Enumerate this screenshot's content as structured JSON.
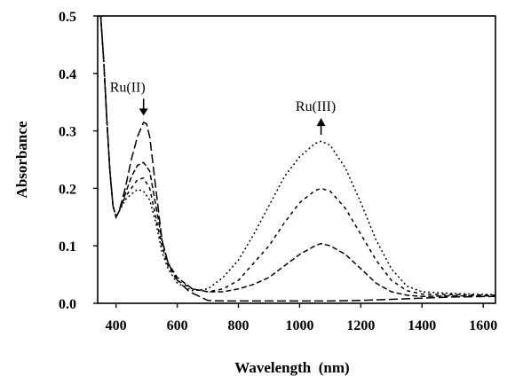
{
  "chart_data": {
    "type": "line",
    "xlabel": "Wavelength  (nm)",
    "ylabel": "Absorbance",
    "xlim": [
      340,
      1640
    ],
    "ylim": [
      0,
      0.5
    ],
    "x_ticks": [
      "400",
      "600",
      "800",
      "1000",
      "1200",
      "1400",
      "1600"
    ],
    "y_ticks": [
      "0.0",
      "0.1",
      "0.2",
      "0.3",
      "0.4",
      "0.5"
    ],
    "grid": false,
    "legend": "none",
    "annotations": [
      {
        "text": "Ru(II)",
        "x": 490,
        "y": 0.325,
        "arrow": "down"
      },
      {
        "text": "Ru(III)",
        "x": 1070,
        "y": 0.29,
        "arrow": "up"
      }
    ],
    "series": [
      {
        "dash": "10,4",
        "points": [
          [
            350,
            0.5
          ],
          [
            360,
            0.42
          ],
          [
            370,
            0.32
          ],
          [
            380,
            0.23
          ],
          [
            390,
            0.17
          ],
          [
            400,
            0.15
          ],
          [
            410,
            0.16
          ],
          [
            430,
            0.2
          ],
          [
            450,
            0.25
          ],
          [
            470,
            0.29
          ],
          [
            490,
            0.315
          ],
          [
            500,
            0.312
          ],
          [
            510,
            0.29
          ],
          [
            530,
            0.2
          ],
          [
            550,
            0.11
          ],
          [
            570,
            0.07
          ],
          [
            600,
            0.04
          ],
          [
            640,
            0.02
          ],
          [
            680,
            0.01
          ],
          [
            700,
            0.005
          ],
          [
            750,
            0.004
          ],
          [
            800,
            0.004
          ],
          [
            900,
            0.004
          ],
          [
            1000,
            0.004
          ],
          [
            1100,
            0.004
          ],
          [
            1200,
            0.005
          ],
          [
            1300,
            0.007
          ],
          [
            1400,
            0.009
          ],
          [
            1500,
            0.011
          ],
          [
            1640,
            0.012
          ]
        ]
      },
      {
        "dash": "6,3",
        "points": [
          [
            350,
            0.5
          ],
          [
            360,
            0.42
          ],
          [
            370,
            0.32
          ],
          [
            380,
            0.23
          ],
          [
            390,
            0.17
          ],
          [
            400,
            0.15
          ],
          [
            410,
            0.16
          ],
          [
            430,
            0.19
          ],
          [
            450,
            0.22
          ],
          [
            470,
            0.24
          ],
          [
            490,
            0.245
          ],
          [
            510,
            0.23
          ],
          [
            530,
            0.17
          ],
          [
            550,
            0.11
          ],
          [
            570,
            0.07
          ],
          [
            600,
            0.045
          ],
          [
            650,
            0.025
          ],
          [
            700,
            0.02
          ],
          [
            750,
            0.02
          ],
          [
            800,
            0.025
          ],
          [
            850,
            0.033
          ],
          [
            900,
            0.045
          ],
          [
            950,
            0.065
          ],
          [
            1000,
            0.085
          ],
          [
            1050,
            0.1
          ],
          [
            1070,
            0.104
          ],
          [
            1100,
            0.1
          ],
          [
            1150,
            0.085
          ],
          [
            1200,
            0.06
          ],
          [
            1250,
            0.035
          ],
          [
            1300,
            0.02
          ],
          [
            1350,
            0.014
          ],
          [
            1400,
            0.012
          ],
          [
            1500,
            0.013
          ],
          [
            1640,
            0.013
          ]
        ]
      },
      {
        "dash": "4,4",
        "points": [
          [
            350,
            0.5
          ],
          [
            360,
            0.42
          ],
          [
            370,
            0.32
          ],
          [
            380,
            0.23
          ],
          [
            390,
            0.17
          ],
          [
            400,
            0.15
          ],
          [
            410,
            0.16
          ],
          [
            430,
            0.185
          ],
          [
            450,
            0.2
          ],
          [
            470,
            0.215
          ],
          [
            490,
            0.218
          ],
          [
            510,
            0.2
          ],
          [
            530,
            0.15
          ],
          [
            550,
            0.1
          ],
          [
            570,
            0.065
          ],
          [
            600,
            0.04
          ],
          [
            650,
            0.025
          ],
          [
            700,
            0.02
          ],
          [
            750,
            0.025
          ],
          [
            800,
            0.04
          ],
          [
            850,
            0.07
          ],
          [
            900,
            0.1
          ],
          [
            950,
            0.14
          ],
          [
            1000,
            0.175
          ],
          [
            1050,
            0.196
          ],
          [
            1070,
            0.2
          ],
          [
            1100,
            0.195
          ],
          [
            1150,
            0.165
          ],
          [
            1200,
            0.12
          ],
          [
            1250,
            0.075
          ],
          [
            1300,
            0.04
          ],
          [
            1350,
            0.022
          ],
          [
            1400,
            0.016
          ],
          [
            1500,
            0.015
          ],
          [
            1640,
            0.014
          ]
        ]
      },
      {
        "dash": "2,3",
        "points": [
          [
            350,
            0.5
          ],
          [
            360,
            0.42
          ],
          [
            370,
            0.32
          ],
          [
            380,
            0.23
          ],
          [
            390,
            0.17
          ],
          [
            400,
            0.15
          ],
          [
            410,
            0.16
          ],
          [
            430,
            0.18
          ],
          [
            450,
            0.19
          ],
          [
            470,
            0.198
          ],
          [
            490,
            0.195
          ],
          [
            510,
            0.18
          ],
          [
            530,
            0.14
          ],
          [
            550,
            0.09
          ],
          [
            570,
            0.06
          ],
          [
            600,
            0.035
          ],
          [
            650,
            0.022
          ],
          [
            700,
            0.025
          ],
          [
            750,
            0.045
          ],
          [
            800,
            0.075
          ],
          [
            850,
            0.12
          ],
          [
            900,
            0.17
          ],
          [
            950,
            0.22
          ],
          [
            1000,
            0.255
          ],
          [
            1050,
            0.278
          ],
          [
            1070,
            0.282
          ],
          [
            1100,
            0.275
          ],
          [
            1150,
            0.235
          ],
          [
            1200,
            0.175
          ],
          [
            1250,
            0.11
          ],
          [
            1300,
            0.06
          ],
          [
            1350,
            0.03
          ],
          [
            1400,
            0.02
          ],
          [
            1500,
            0.017
          ],
          [
            1640,
            0.015
          ]
        ]
      }
    ]
  }
}
